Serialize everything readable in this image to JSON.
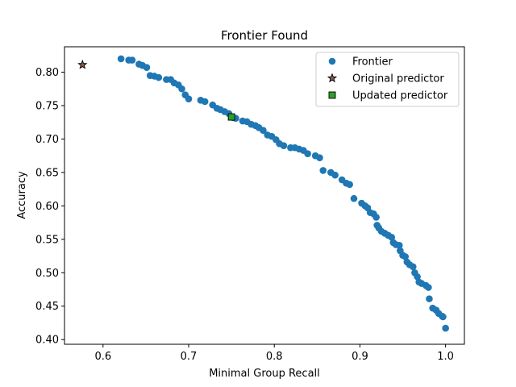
{
  "chart_data": {
    "type": "scatter",
    "title": "Frontier Found",
    "xlabel": "Minimal Group Recall",
    "ylabel": "Accuracy",
    "xlim": [
      0.555,
      1.022
    ],
    "ylim": [
      0.393,
      0.838
    ],
    "xticks": [
      0.6,
      0.7,
      0.8,
      0.9,
      1.0
    ],
    "xtick_labels": [
      "0.6",
      "0.7",
      "0.8",
      "0.9",
      "1.0"
    ],
    "yticks": [
      0.4,
      0.45,
      0.5,
      0.55,
      0.6,
      0.65,
      0.7,
      0.75,
      0.8
    ],
    "ytick_labels": [
      "0.40",
      "0.45",
      "0.50",
      "0.55",
      "0.60",
      "0.65",
      "0.70",
      "0.75",
      "0.80"
    ],
    "grid": false,
    "legend_position": "top-right",
    "series": [
      {
        "name": "Frontier",
        "marker": "circle",
        "color": "#1f77b4",
        "points": [
          [
            0.621,
            0.82
          ],
          [
            0.63,
            0.818
          ],
          [
            0.634,
            0.818
          ],
          [
            0.642,
            0.812
          ],
          [
            0.646,
            0.81
          ],
          [
            0.651,
            0.807
          ],
          [
            0.655,
            0.795
          ],
          [
            0.66,
            0.794
          ],
          [
            0.665,
            0.792
          ],
          [
            0.674,
            0.789
          ],
          [
            0.679,
            0.789
          ],
          [
            0.683,
            0.784
          ],
          [
            0.688,
            0.781
          ],
          [
            0.692,
            0.775
          ],
          [
            0.696,
            0.766
          ],
          [
            0.7,
            0.76
          ],
          [
            0.714,
            0.758
          ],
          [
            0.719,
            0.756
          ],
          [
            0.728,
            0.751
          ],
          [
            0.733,
            0.746
          ],
          [
            0.737,
            0.744
          ],
          [
            0.742,
            0.741
          ],
          [
            0.747,
            0.738
          ],
          [
            0.752,
            0.732
          ],
          [
            0.755,
            0.731
          ],
          [
            0.763,
            0.727
          ],
          [
            0.768,
            0.726
          ],
          [
            0.773,
            0.722
          ],
          [
            0.778,
            0.72
          ],
          [
            0.782,
            0.717
          ],
          [
            0.787,
            0.713
          ],
          [
            0.792,
            0.706
          ],
          [
            0.797,
            0.704
          ],
          [
            0.802,
            0.699
          ],
          [
            0.806,
            0.693
          ],
          [
            0.811,
            0.69
          ],
          [
            0.819,
            0.687
          ],
          [
            0.824,
            0.687
          ],
          [
            0.829,
            0.685
          ],
          [
            0.834,
            0.683
          ],
          [
            0.839,
            0.678
          ],
          [
            0.848,
            0.675
          ],
          [
            0.853,
            0.672
          ],
          [
            0.857,
            0.653
          ],
          [
            0.866,
            0.65
          ],
          [
            0.871,
            0.646
          ],
          [
            0.879,
            0.639
          ],
          [
            0.884,
            0.634
          ],
          [
            0.888,
            0.632
          ],
          [
            0.893,
            0.611
          ],
          [
            0.902,
            0.604
          ],
          [
            0.906,
            0.6
          ],
          [
            0.909,
            0.597
          ],
          [
            0.912,
            0.59
          ],
          [
            0.916,
            0.588
          ],
          [
            0.919,
            0.583
          ],
          [
            0.92,
            0.571
          ],
          [
            0.922,
            0.567
          ],
          [
            0.925,
            0.562
          ],
          [
            0.929,
            0.559
          ],
          [
            0.933,
            0.556
          ],
          [
            0.937,
            0.553
          ],
          [
            0.939,
            0.545
          ],
          [
            0.942,
            0.542
          ],
          [
            0.946,
            0.541
          ],
          [
            0.947,
            0.533
          ],
          [
            0.95,
            0.526
          ],
          [
            0.953,
            0.524
          ],
          [
            0.955,
            0.516
          ],
          [
            0.958,
            0.512
          ],
          [
            0.962,
            0.509
          ],
          [
            0.964,
            0.5
          ],
          [
            0.967,
            0.494
          ],
          [
            0.969,
            0.486
          ],
          [
            0.972,
            0.484
          ],
          [
            0.977,
            0.481
          ],
          [
            0.98,
            0.478
          ],
          [
            0.981,
            0.461
          ],
          [
            0.985,
            0.447
          ],
          [
            0.989,
            0.444
          ],
          [
            0.992,
            0.439
          ],
          [
            0.996,
            0.435
          ],
          [
            0.997,
            0.434
          ],
          [
            1.0,
            0.417
          ]
        ]
      },
      {
        "name": "Original predictor",
        "marker": "star",
        "color": "#8c564b",
        "points": [
          [
            0.576,
            0.811
          ]
        ]
      },
      {
        "name": "Updated predictor",
        "marker": "square",
        "color": "#2ca02c",
        "points": [
          [
            0.75,
            0.733
          ]
        ]
      }
    ]
  }
}
